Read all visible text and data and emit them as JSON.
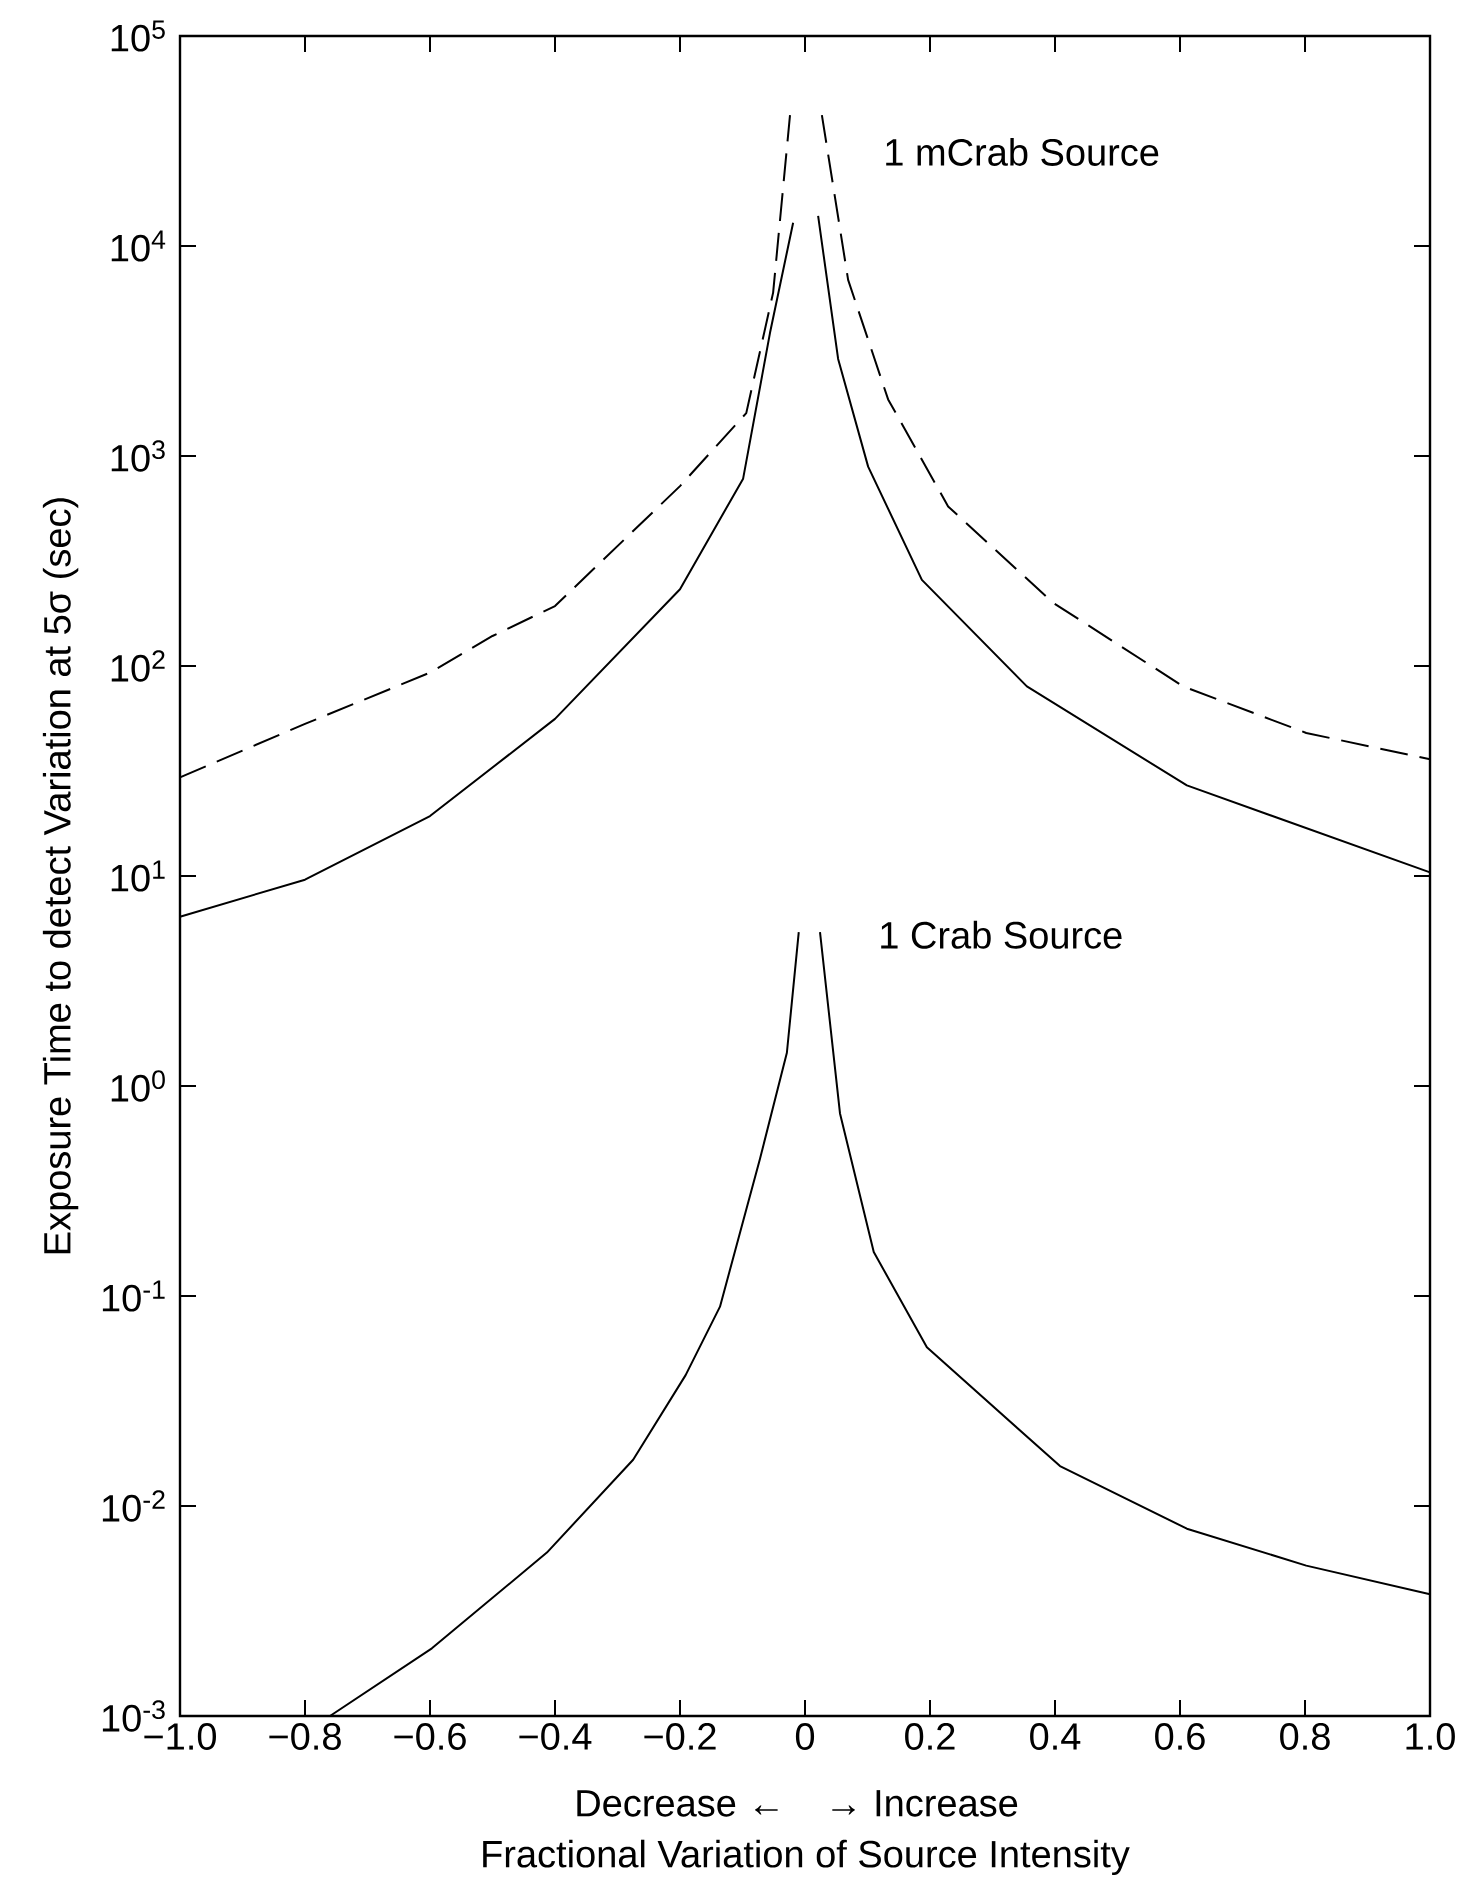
{
  "chart_data": {
    "type": "line",
    "xlabel": "Fractional Variation of Source Intensity",
    "ylabel": "Exposure Time to detect Variation at 5σ (sec)",
    "log": "y",
    "grid": false,
    "marker": "none",
    "xlim": [
      -1,
      1
    ],
    "ylim": [
      0.001,
      100000
    ],
    "xticks": [
      {
        "value": -1,
        "label": "−1.0"
      },
      {
        "value": -0.8,
        "label": "−0.8"
      },
      {
        "value": -0.6,
        "label": "−0.6"
      },
      {
        "value": -0.4,
        "label": "−0.4"
      },
      {
        "value": -0.2,
        "label": "−0.2"
      },
      0,
      0.2,
      0.4,
      0.6,
      0.8,
      {
        "value": 1,
        "label": "1.0"
      }
    ],
    "yticks": [
      {
        "value": 0.001,
        "label": "10$^{-3}$"
      },
      {
        "value": 0.01,
        "label": "10$^{-2}$"
      },
      {
        "value": 0.1,
        "label": "10$^{-1}$"
      },
      {
        "value": 1,
        "label": "10$^{0}$"
      },
      {
        "value": 10,
        "label": "10$^{1}$"
      },
      {
        "value": 100,
        "label": "10$^{2}$"
      },
      {
        "value": 1000,
        "label": "10$^{3}$"
      },
      {
        "value": 10000,
        "label": "10$^{4}$"
      },
      {
        "value": 100000,
        "label": "10$^{5}$"
      }
    ],
    "series": [
      {
        "color": "#000000",
        "line_style": "dashed",
        "x": [
          -1,
          -0.8,
          -0.6,
          -0.5,
          -0.4,
          -0.2,
          -0.094,
          -0.051,
          -0.024
        ],
        "values": [
          29.5,
          53,
          93,
          139,
          193,
          719,
          1600,
          6000,
          42000
        ]
      },
      {
        "color": "#000000",
        "line_style": "dashed",
        "x": [
          0.027,
          0.069,
          0.133,
          0.229,
          0.397,
          0.605,
          0.802,
          1
        ],
        "values": [
          42000,
          6900,
          1860,
          575,
          200,
          80,
          48,
          36
        ]
      },
      {
        "color": "#000000",
        "line_style": "solid",
        "x": [
          -1,
          -0.8,
          -0.6,
          -0.4,
          -0.2,
          -0.099,
          -0.056,
          -0.019
        ],
        "values": [
          6.4,
          9.6,
          19.3,
          56,
          232,
          780,
          3860,
          12900
        ]
      },
      {
        "color": "#000000",
        "line_style": "solid",
        "x": [
          0.021,
          0.053,
          0.101,
          0.187,
          0.355,
          0.611,
          1
        ],
        "values": [
          13900,
          2900,
          890,
          257,
          80,
          27,
          10.4
        ]
      },
      {
        "color": "#000000",
        "line_style": "solid",
        "x": [
          -0.76,
          -0.597,
          -0.413,
          -0.275,
          -0.191,
          -0.136,
          -0.072,
          -0.029,
          -0.01
        ],
        "values": [
          0.001,
          0.0021,
          0.006,
          0.0166,
          0.042,
          0.089,
          0.45,
          1.44,
          5.4
        ]
      },
      {
        "color": "#000000",
        "line_style": "solid",
        "x": [
          0.024,
          0.056,
          0.11,
          0.195,
          0.408,
          0.611,
          0.802,
          1
        ],
        "values": [
          5.4,
          0.74,
          0.162,
          0.057,
          0.0155,
          0.0078,
          0.0052,
          0.0038
        ]
      }
    ],
    "annotations": [
      "1 mCrab Source",
      "1 Crab Source",
      "Decrease ←",
      "→ Increase"
    ]
  }
}
